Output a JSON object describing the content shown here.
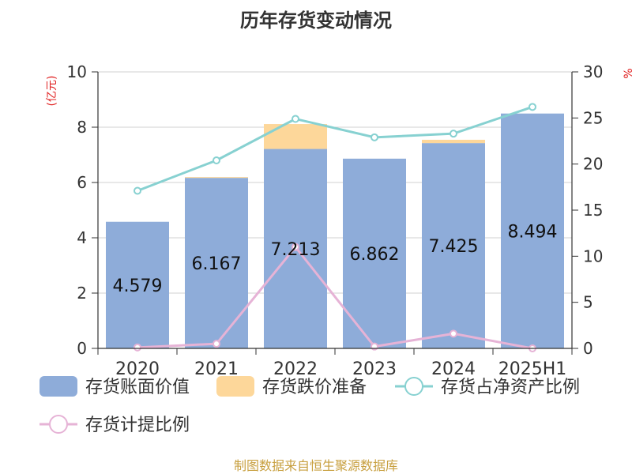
{
  "chart_data": {
    "type": "bar",
    "title": "历年存货变动情况",
    "categories": [
      "2020",
      "2021",
      "2022",
      "2023",
      "2024",
      "2025H1"
    ],
    "y_left": {
      "label": "(亿元)",
      "range": [
        0,
        10
      ],
      "ticks": [
        "0",
        "2",
        "4",
        "6",
        "8",
        "10"
      ]
    },
    "y_right": {
      "label": "%",
      "range": [
        0,
        30
      ],
      "ticks": [
        "0",
        "5",
        "10",
        "15",
        "20",
        "25",
        "30"
      ]
    },
    "bar_series": [
      {
        "name": "存货账面价值",
        "color": "#8eacd9",
        "values": [
          4.579,
          6.167,
          7.213,
          6.862,
          7.425,
          8.494
        ],
        "labels": [
          "4.579",
          "6.167",
          "7.213",
          "6.862",
          "7.425",
          "8.494"
        ]
      },
      {
        "name": "存货跌价准备",
        "color": "#fdd79a",
        "values": [
          0.0,
          0.03,
          0.9,
          0.0,
          0.12,
          0.0
        ]
      }
    ],
    "line_series": [
      {
        "name": "存货占净资产比例",
        "color": "#87d1d1",
        "axis": "right",
        "values": [
          17.1,
          20.4,
          24.9,
          22.9,
          23.3,
          26.2
        ]
      },
      {
        "name": "存货计提比例",
        "color": "#e6b3d6",
        "axis": "right",
        "values": [
          0.1,
          0.5,
          11.0,
          0.2,
          1.6,
          0.0
        ]
      }
    ],
    "grid": true,
    "legend_position": "bottom"
  },
  "source": "制图数据来自恒生聚源数据库"
}
